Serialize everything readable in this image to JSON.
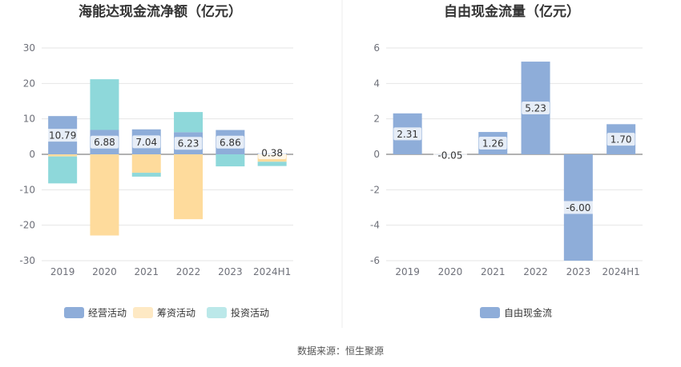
{
  "footer": {
    "source": "数据来源：恒生聚源"
  },
  "colors": {
    "operating": "#8eadd9",
    "financing": "#fedb9c",
    "investing": "#8ed8da",
    "free_cash_flow": "#8eadd9"
  },
  "chart_data": [
    {
      "type": "bar",
      "stacked": true,
      "title": "海能达现金流净额（亿元）",
      "categories": [
        "2019",
        "2020",
        "2021",
        "2022",
        "2023",
        "2024H1"
      ],
      "ylim": [
        -30,
        30
      ],
      "yticks": [
        -30,
        -20,
        -10,
        0,
        10,
        20,
        30
      ],
      "legend_position": "bottom",
      "series": [
        {
          "name": "经营活动",
          "values": [
            10.79,
            6.88,
            7.04,
            6.23,
            6.86,
            0.38
          ],
          "labels": [
            "10.79",
            "6.88",
            "7.04",
            "6.23",
            "6.86",
            "0.38"
          ]
        },
        {
          "name": "筹资活动",
          "values": [
            -0.6,
            -22.9,
            -5.2,
            -18.3,
            0.0,
            -2.1
          ]
        },
        {
          "name": "投资活动",
          "values": [
            -7.6,
            14.3,
            -1.1,
            5.7,
            -3.4,
            -1.2
          ]
        }
      ]
    },
    {
      "type": "bar",
      "title": "自由现金流量（亿元）",
      "categories": [
        "2019",
        "2020",
        "2021",
        "2022",
        "2023",
        "2024H1"
      ],
      "ylim": [
        -6,
        6
      ],
      "yticks": [
        -6,
        -4,
        -2,
        0,
        2,
        4,
        6
      ],
      "legend_position": "bottom",
      "series": [
        {
          "name": "自由现金流",
          "values": [
            2.31,
            -0.05,
            1.26,
            5.23,
            -6.0,
            1.7
          ],
          "labels": [
            "2.31",
            "-0.05",
            "1.26",
            "5.23",
            "-6.00",
            "1.70"
          ]
        }
      ]
    }
  ]
}
